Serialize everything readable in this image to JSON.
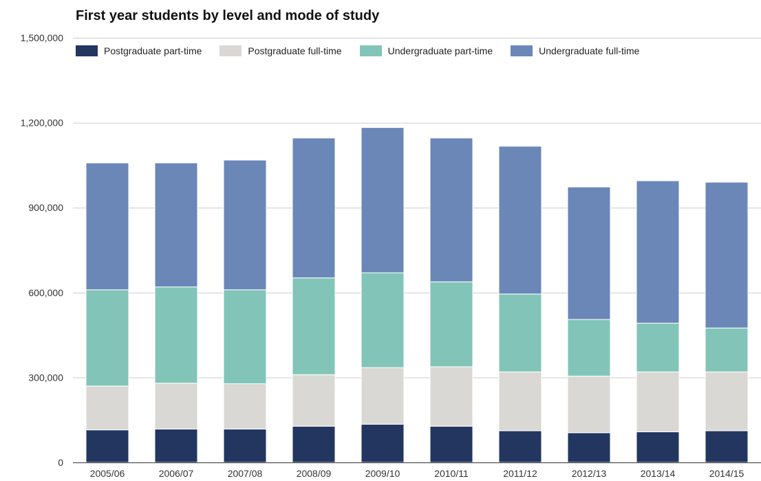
{
  "chart_data": {
    "type": "bar",
    "stacked": true,
    "title": "First year students by level and mode of study",
    "xlabel": "",
    "ylabel": "",
    "ylim": [
      0,
      1500000
    ],
    "yticks": [
      0,
      300000,
      600000,
      900000,
      1200000,
      1500000
    ],
    "ytick_labels": [
      "0",
      "300,000",
      "600,000",
      "900,000",
      "1,200,000",
      "1,500,000"
    ],
    "grid": true,
    "legend_position": "top",
    "categories": [
      "2005/06",
      "2006/07",
      "2007/08",
      "2008/09",
      "2009/10",
      "2010/11",
      "2011/12",
      "2012/13",
      "2013/14",
      "2014/15"
    ],
    "series": [
      {
        "name": "Postgraduate part-time",
        "color": "#22365f",
        "values": [
          115000,
          118000,
          118000,
          128000,
          135000,
          128000,
          112000,
          105000,
          108000,
          112000
        ]
      },
      {
        "name": "Postgraduate full-time",
        "color": "#dad8d4",
        "values": [
          155000,
          162000,
          160000,
          182000,
          200000,
          210000,
          208000,
          200000,
          212000,
          208000
        ]
      },
      {
        "name": "Undergraduate part-time",
        "color": "#82c5b8",
        "values": [
          340000,
          340000,
          332000,
          342000,
          335000,
          300000,
          275000,
          200000,
          172000,
          155000
        ]
      },
      {
        "name": "Undergraduate full-time",
        "color": "#6a87b8",
        "values": [
          448000,
          438000,
          458000,
          494000,
          513000,
          508000,
          522000,
          468000,
          503000,
          515000
        ]
      }
    ]
  }
}
